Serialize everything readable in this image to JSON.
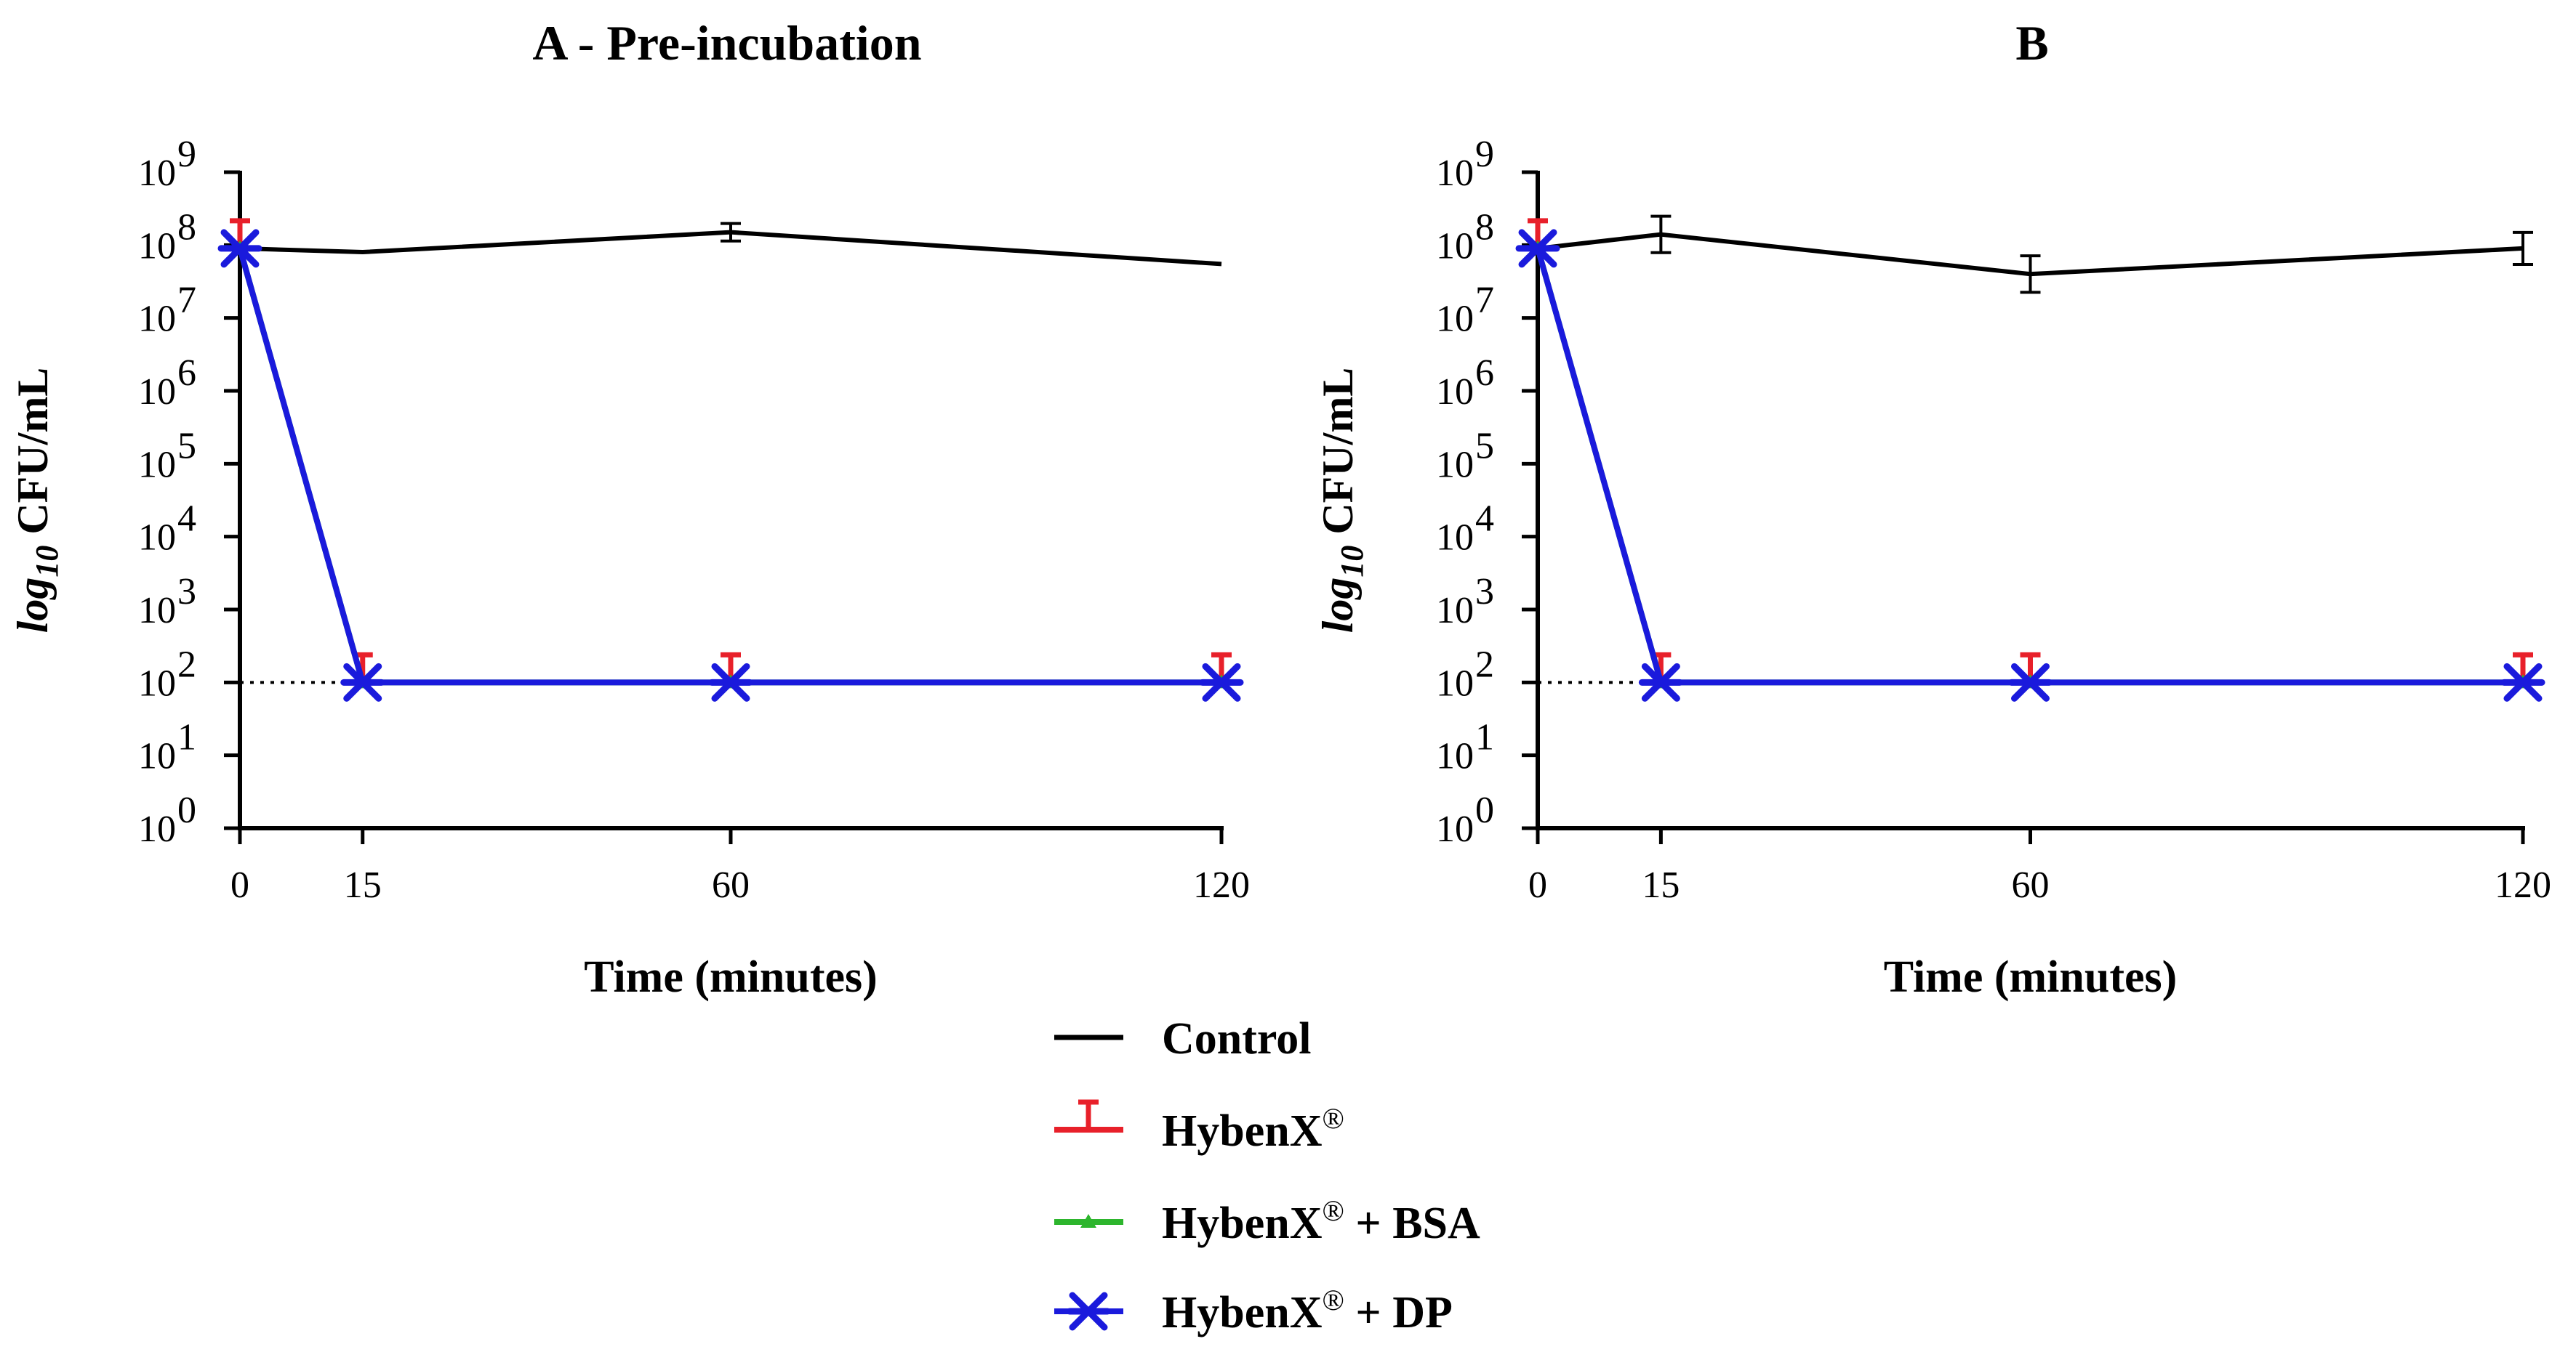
{
  "legend": [
    {
      "key": "control",
      "label": "Control",
      "color": "#000000",
      "marker": "none"
    },
    {
      "key": "hybenx",
      "label": "HybenX",
      "sup": "®",
      "suffix": "",
      "color": "#e8202a",
      "marker": "t-bar"
    },
    {
      "key": "hybenx_bsa",
      "label": "HybenX",
      "sup": "®",
      "suffix": "+ BSA",
      "color": "#2db52d",
      "marker": "triangle"
    },
    {
      "key": "hybenx_dp",
      "label": "HybenX",
      "sup": "®",
      "suffix": "+ DP",
      "color": "#1a1adc",
      "marker": "star"
    }
  ],
  "chart_data": [
    {
      "type": "line",
      "title": "A - Pre-incubation",
      "xlabel": "Time (minutes)",
      "ylabel": {
        "prefix": "log",
        "sub": "10",
        "suffix": " CFU/mL"
      },
      "yscale": "log",
      "ylim_exponents": [
        0,
        9
      ],
      "y_tick_exponents": [
        0,
        1,
        2,
        3,
        4,
        5,
        6,
        7,
        8,
        9
      ],
      "x_ticks": [
        0,
        15,
        60,
        120
      ],
      "xlim": [
        0,
        120
      ],
      "detection_limit": 100,
      "series": [
        {
          "name": "Control",
          "x": [
            0,
            15,
            60,
            120
          ],
          "y": [
            90000000,
            80000000,
            150000000,
            55000000
          ],
          "err_log": [
            0.05,
            0.03,
            0.12,
            0.03
          ]
        },
        {
          "name": "HybenX",
          "x": [
            0,
            15,
            60,
            120
          ],
          "y": [
            90000000,
            100,
            100,
            100
          ]
        },
        {
          "name": "HybenX + BSA",
          "x": [
            0,
            15,
            60,
            120
          ],
          "y": [
            90000000,
            100,
            100,
            100
          ]
        },
        {
          "name": "HybenX + DP",
          "x": [
            0,
            15,
            60,
            120
          ],
          "y": [
            90000000,
            100,
            100,
            100
          ]
        }
      ]
    },
    {
      "type": "line",
      "title": "B",
      "xlabel": "Time (minutes)",
      "ylabel": {
        "prefix": "log",
        "sub": "10",
        "suffix": " CFU/mL"
      },
      "yscale": "log",
      "ylim_exponents": [
        0,
        9
      ],
      "y_tick_exponents": [
        0,
        1,
        2,
        3,
        4,
        5,
        6,
        7,
        8,
        9
      ],
      "x_ticks": [
        0,
        15,
        60,
        120
      ],
      "xlim": [
        0,
        120
      ],
      "detection_limit": 100,
      "series": [
        {
          "name": "Control",
          "x": [
            0,
            15,
            60,
            120
          ],
          "y": [
            90000000,
            140000000,
            40000000,
            90000000
          ],
          "err_log": [
            0.05,
            0.25,
            0.25,
            0.22
          ]
        },
        {
          "name": "HybenX",
          "x": [
            0,
            15,
            60,
            120
          ],
          "y": [
            90000000,
            100,
            100,
            100
          ]
        },
        {
          "name": "HybenX + BSA",
          "x": [
            0,
            15,
            60,
            120
          ],
          "y": [
            90000000,
            100,
            100,
            100
          ]
        },
        {
          "name": "HybenX + DP",
          "x": [
            0,
            15,
            60,
            120
          ],
          "y": [
            90000000,
            100,
            100,
            100
          ]
        }
      ]
    }
  ]
}
